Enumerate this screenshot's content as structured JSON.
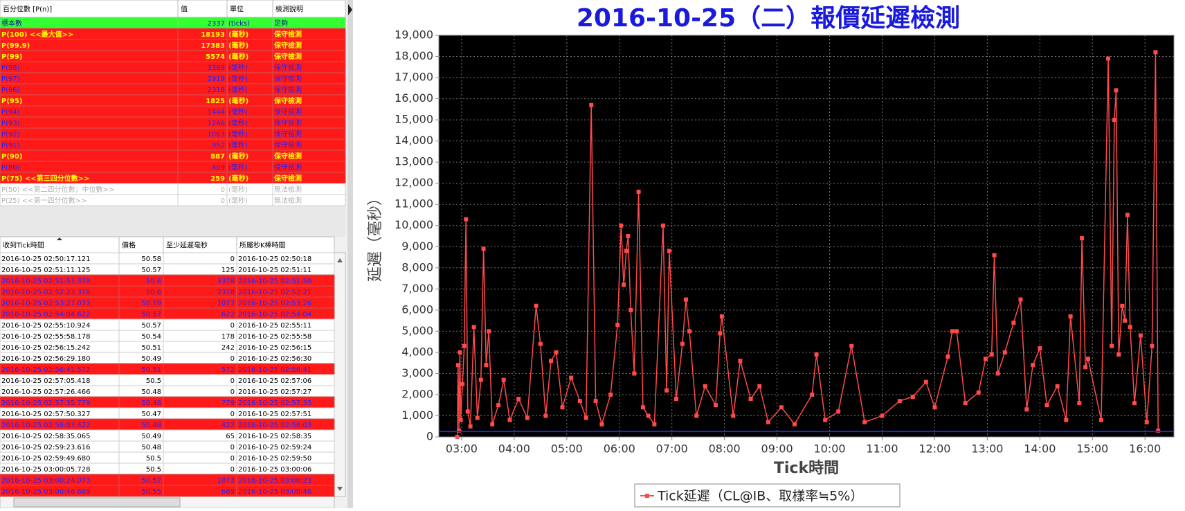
{
  "percentile_table": {
    "columns": [
      "百分位數 [P(n)]",
      "值",
      "單位",
      "檢測說明"
    ],
    "rows": [
      [
        "標本數",
        2337,
        "(ticks)",
        "足夠"
      ],
      [
        "P(100) <<最大值>>",
        18193,
        "(毫秒)",
        "保守檢測"
      ],
      [
        "P(99.9)",
        17383,
        "(毫秒)",
        "保守檢測"
      ],
      [
        "P(99)",
        5574,
        "(毫秒)",
        "保守檢測"
      ],
      [
        "P(98)",
        3389,
        "(毫秒)",
        "保守檢測"
      ],
      [
        "P(97)",
        2919,
        "(毫秒)",
        "保守檢測"
      ],
      [
        "P(96)",
        2318,
        "(毫秒)",
        "保守檢測"
      ],
      [
        "P(95)",
        1825,
        "(毫秒)",
        "保守檢測"
      ],
      [
        "P(94)",
        1444,
        "(毫秒)",
        "保守檢測"
      ],
      [
        "P(93)",
        1246,
        "(毫秒)",
        "保守檢測"
      ],
      [
        "P(92)",
        1063,
        "(毫秒)",
        "保守檢測"
      ],
      [
        "P(91)",
        952,
        "(毫秒)",
        "保守檢測"
      ],
      [
        "P(90)",
        887,
        "(毫秒)",
        "保守檢測"
      ],
      [
        "P(80)",
        409,
        "(毫秒)",
        "保守檢測"
      ],
      [
        "P(75) <<第三四分位數>>",
        259,
        "(毫秒)",
        "保守檢測"
      ],
      [
        "P(50) <<第二四分位數；中位數>>",
        0,
        "(毫秒)",
        "無法檢測"
      ],
      [
        "P(25) <<第一四分位數>>",
        0,
        "(毫秒)",
        "無法檢測"
      ]
    ],
    "row_styles": [
      "green",
      "major",
      "major",
      "major",
      "minor",
      "minor",
      "minor",
      "major",
      "minor",
      "minor",
      "minor",
      "minor",
      "major",
      "minor",
      "major",
      "na",
      "na"
    ]
  },
  "tick_table": {
    "columns": [
      "收到Tick時間",
      "價格",
      "至少延遲毫秒",
      "所屬秒K棒時間"
    ],
    "rows": [
      [
        "2016-10-25 02:50:17.121",
        50.58,
        0,
        "2016-10-25 02:50:18"
      ],
      [
        "2016-10-25 02:51:11.125",
        50.57,
        125,
        "2016-10-25 02:51:11"
      ],
      [
        "2016-10-25 02:51:53.378",
        50.6,
        3378,
        "2016-10-25 02:51:50"
      ],
      [
        "2016-10-25 02:52:23.318",
        50.6,
        2318,
        "2016-10-25 02:52:21"
      ],
      [
        "2016-10-25 02:53:27.073",
        50.59,
        1073,
        "2016-10-25 02:53:26"
      ],
      [
        "2016-10-25 02:54:04.622",
        50.57,
        622,
        "2016-10-25 02:54:04"
      ],
      [
        "2016-10-25 02:55:10.924",
        50.57,
        0,
        "2016-10-25 02:55:11"
      ],
      [
        "2016-10-25 02:55:58.178",
        50.54,
        178,
        "2016-10-25 02:55:58"
      ],
      [
        "2016-10-25 02:56:15.242",
        50.51,
        242,
        "2016-10-25 02:56:15"
      ],
      [
        "2016-10-25 02:56:29.180",
        50.49,
        0,
        "2016-10-25 02:56:30"
      ],
      [
        "2016-10-25 02:56:41.572",
        50.51,
        572,
        "2016-10-25 02:56:41"
      ],
      [
        "2016-10-25 02:57:05.418",
        50.5,
        0,
        "2016-10-25 02:57:06"
      ],
      [
        "2016-10-25 02:57:26.466",
        50.48,
        0,
        "2016-10-25 02:57:27"
      ],
      [
        "2016-10-25 02:57:35.779",
        50.48,
        779,
        "2016-10-25 02:57:35"
      ],
      [
        "2016-10-25 02:57:50.327",
        50.47,
        0,
        "2016-10-25 02:57:51"
      ],
      [
        "2016-10-25 02:58:03.422",
        50.48,
        422,
        "2016-10-25 02:58:03"
      ],
      [
        "2016-10-25 02:58:35.065",
        50.49,
        65,
        "2016-10-25 02:58:35"
      ],
      [
        "2016-10-25 02:59:23.616",
        50.48,
        0,
        "2016-10-25 02:59:24"
      ],
      [
        "2016-10-25 02:59:49.680",
        50.5,
        0,
        "2016-10-25 02:59:50"
      ],
      [
        "2016-10-25 03:00:05.728",
        50.5,
        0,
        "2016-10-25 03:00:06"
      ],
      [
        "2016-10-25 03:00:24.073",
        50.52,
        1073,
        "2016-10-25 03:00:23"
      ],
      [
        "2016-10-25 03:00:46.669",
        50.55,
        669,
        "2016-10-25 03:00:46"
      ]
    ],
    "row_styles": [
      "normal",
      "normal",
      "alert",
      "alert",
      "alert",
      "alert",
      "normal",
      "normal",
      "normal",
      "normal",
      "alert",
      "normal",
      "normal",
      "alert",
      "normal",
      "alert",
      "normal",
      "normal",
      "normal",
      "normal",
      "alert",
      "alert"
    ]
  },
  "chart_data": {
    "type": "line",
    "title": "2016-10-25（二）報價延遲檢測",
    "x_label": "Tick時間",
    "y_label": "延遲（毫秒）",
    "x": [
      "02:55",
      "02:56",
      "02:57",
      "02:58",
      "02:59",
      "03:01",
      "03:03",
      "03:05",
      "03:07",
      "03:10",
      "03:14",
      "03:18",
      "03:22",
      "03:25",
      "03:28",
      "03:31",
      "03:35",
      "03:42",
      "03:48",
      "03:55",
      "04:05",
      "04:15",
      "04:25",
      "04:30",
      "04:36",
      "04:42",
      "04:48",
      "04:55",
      "05:05",
      "05:15",
      "05:22",
      "05:28",
      "05:33",
      "05:40",
      "05:50",
      "05:58",
      "06:02",
      "06:05",
      "06:08",
      "06:10",
      "06:13",
      "06:17",
      "06:22",
      "06:27",
      "06:33",
      "06:40",
      "06:50",
      "06:54",
      "06:57",
      "07:05",
      "07:12",
      "07:16",
      "07:20",
      "07:28",
      "07:38",
      "07:50",
      "07:55",
      "07:57",
      "08:10",
      "08:18",
      "08:30",
      "08:40",
      "08:50",
      "09:05",
      "09:20",
      "09:40",
      "09:45",
      "09:55",
      "10:10",
      "10:25",
      "10:40",
      "11:00",
      "11:20",
      "11:35",
      "11:50",
      "12:00",
      "12:15",
      "12:20",
      "12:25",
      "12:35",
      "12:50",
      "12:58",
      "13:05",
      "13:08",
      "13:12",
      "13:20",
      "13:30",
      "13:38",
      "13:45",
      "13:52",
      "14:00",
      "14:08",
      "14:20",
      "14:30",
      "14:35",
      "14:45",
      "14:48",
      "14:52",
      "14:55",
      "15:10",
      "15:18",
      "15:22",
      "15:25",
      "15:27",
      "15:30",
      "15:34",
      "15:37",
      "15:40",
      "15:43",
      "15:48",
      "15:55",
      "16:02",
      "16:08",
      "16:12",
      "16:15"
    ],
    "series": [
      {
        "name": "Tick延遲（CL@IB、取樣率≒5%）",
        "color": "#ff4a4a",
        "values": [
          0,
          3400,
          300,
          4000,
          800,
          2500,
          4300,
          10300,
          1200,
          500,
          5200,
          900,
          2700,
          8900,
          3400,
          5000,
          600,
          1500,
          2700,
          800,
          1800,
          900,
          6200,
          4400,
          1000,
          3600,
          4000,
          1400,
          2800,
          1700,
          900,
          15700,
          1700,
          600,
          2000,
          5300,
          10000,
          7200,
          8800,
          9500,
          6000,
          3000,
          11600,
          1400,
          1000,
          600,
          10000,
          2200,
          8800,
          1800,
          4400,
          6500,
          5000,
          1000,
          2400,
          1500,
          4900,
          5700,
          1000,
          3600,
          1800,
          2400,
          700,
          1400,
          600,
          2000,
          3900,
          800,
          1200,
          4300,
          700,
          1000,
          1700,
          1900,
          2600,
          1400,
          3800,
          5000,
          5000,
          1600,
          2100,
          3700,
          3900,
          8600,
          3000,
          4000,
          5400,
          6500,
          1300,
          3400,
          4200,
          1500,
          2400,
          800,
          5700,
          1600,
          9400,
          3300,
          3700,
          800,
          17900,
          4300,
          15000,
          16400,
          3900,
          6200,
          5500,
          10500,
          5200,
          1600,
          4800,
          700,
          4300,
          18200,
          300
        ]
      }
    ],
    "reference_line": {
      "value": 259,
      "color": "#1a2bd6"
    },
    "xlim": [
      "02:34",
      "16:33"
    ],
    "xticks": [
      "03:00",
      "04:00",
      "05:00",
      "06:00",
      "07:00",
      "08:00",
      "09:00",
      "10:00",
      "11:00",
      "12:00",
      "13:00",
      "14:00",
      "15:00",
      "16:00"
    ],
    "ylim": [
      0,
      19000
    ],
    "yticks": [
      0,
      {
        "value": 1000,
        "label": "1,000"
      },
      {
        "value": 2000,
        "label": "2,000"
      },
      {
        "value": 3000,
        "label": "3,000"
      },
      {
        "value": 4000,
        "label": "4,000"
      },
      {
        "value": 5000,
        "label": "5,000"
      },
      {
        "value": 6000,
        "label": "6,000"
      },
      {
        "value": 7000,
        "label": "7,000"
      },
      {
        "value": 8000,
        "label": "8,000"
      },
      {
        "value": 9000,
        "label": "9,000"
      },
      {
        "value": 10000,
        "label": "10,000"
      },
      {
        "value": 11000,
        "label": "11,000"
      },
      {
        "value": 12000,
        "label": "12,000"
      },
      {
        "value": 13000,
        "label": "13,000"
      },
      {
        "value": 14000,
        "label": "14,000"
      },
      {
        "value": 15000,
        "label": "15,000"
      },
      {
        "value": 16000,
        "label": "16,000"
      },
      {
        "value": 17000,
        "label": "17,000"
      },
      {
        "value": 18000,
        "label": "18,000"
      },
      {
        "value": 19000,
        "label": "19,000"
      }
    ],
    "grid": true,
    "background": "#000000",
    "legend": "bottom"
  }
}
